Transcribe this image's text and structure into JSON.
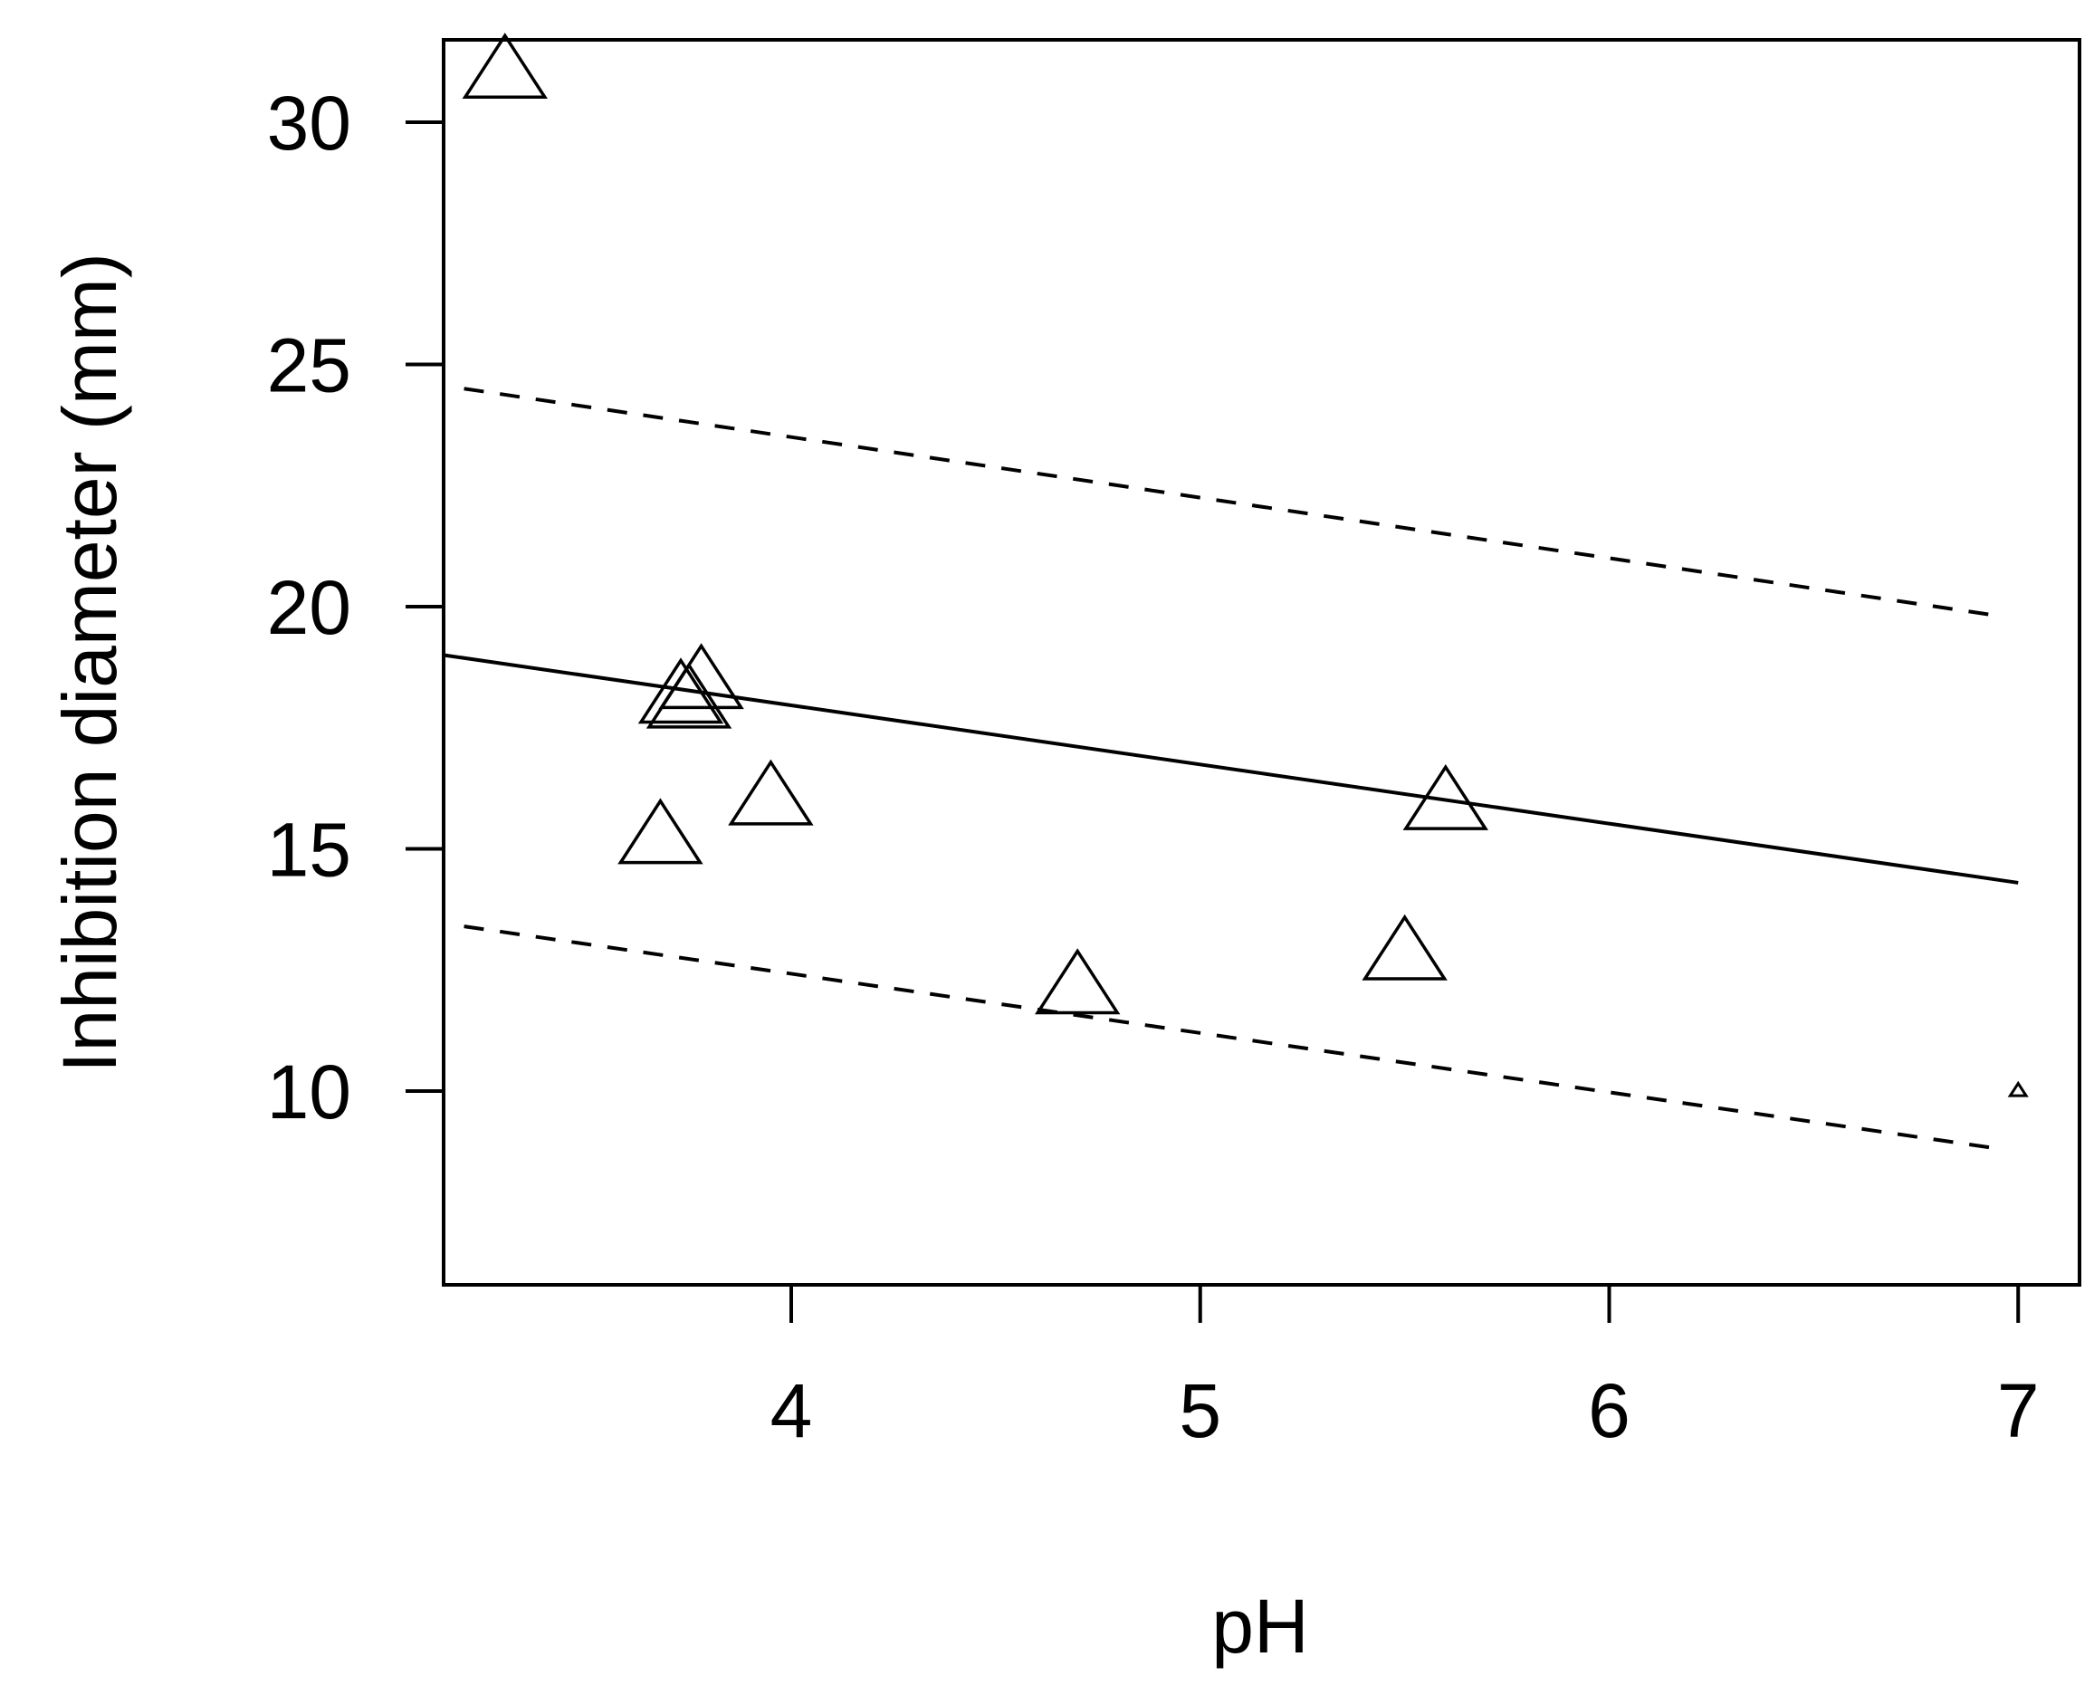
{
  "chart_data": {
    "type": "scatter",
    "title": "",
    "xlabel": "pH",
    "ylabel": "Inhibition diameter (mm)",
    "xlim": [
      3.15,
      7.15
    ],
    "ylim": [
      6.0,
      31.7
    ],
    "xticks": [
      4,
      5,
      6,
      7
    ],
    "yticks": [
      10,
      15,
      20,
      25,
      30
    ],
    "grid": false,
    "marker": "open-triangle",
    "points": [
      {
        "x": 3.3,
        "y": 31.0,
        "size": 1.0
      },
      {
        "x": 3.68,
        "y": 15.2,
        "size": 1.0
      },
      {
        "x": 3.73,
        "y": 18.1,
        "size": 1.0
      },
      {
        "x": 3.75,
        "y": 18.0,
        "size": 1.0
      },
      {
        "x": 3.78,
        "y": 18.4,
        "size": 1.0
      },
      {
        "x": 3.95,
        "y": 16.0,
        "size": 1.0
      },
      {
        "x": 4.7,
        "y": 12.1,
        "size": 1.0
      },
      {
        "x": 5.5,
        "y": 12.8,
        "size": 1.0
      },
      {
        "x": 5.6,
        "y": 15.9,
        "size": 1.0
      },
      {
        "x": 7.0,
        "y": 10.0,
        "size": 0.2
      }
    ],
    "lines": [
      {
        "style": "solid",
        "x": [
          3.15,
          7.0
        ],
        "y": [
          19.0,
          14.3
        ]
      },
      {
        "style": "dashed",
        "x": [
          3.2,
          6.96
        ],
        "y": [
          24.5,
          19.8
        ]
      },
      {
        "style": "dashed",
        "x": [
          3.2,
          6.96
        ],
        "y": [
          13.4,
          8.8
        ]
      }
    ],
    "colors": {
      "ink": "#000000",
      "background": "#ffffff"
    }
  }
}
